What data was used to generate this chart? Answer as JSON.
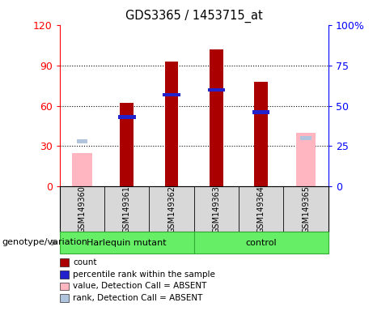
{
  "title": "GDS3365 / 1453715_at",
  "samples": [
    "GSM149360",
    "GSM149361",
    "GSM149362",
    "GSM149363",
    "GSM149364",
    "GSM149365"
  ],
  "count_values": [
    null,
    62,
    93,
    102,
    78,
    null
  ],
  "percentile_values": [
    null,
    43,
    57,
    60,
    46,
    null
  ],
  "absent_value_values": [
    25,
    null,
    null,
    null,
    null,
    40
  ],
  "absent_rank_values": [
    28,
    null,
    null,
    null,
    null,
    30
  ],
  "left_ylim": [
    0,
    120
  ],
  "right_ylim": [
    0,
    100
  ],
  "left_yticks": [
    0,
    30,
    60,
    90,
    120
  ],
  "right_yticks": [
    0,
    25,
    50,
    75,
    100
  ],
  "left_yticklabels": [
    "0",
    "30",
    "60",
    "90",
    "120"
  ],
  "right_yticklabels": [
    "0",
    "25",
    "50",
    "75",
    "100%"
  ],
  "count_color": "#aa0000",
  "percentile_color": "#2222cc",
  "absent_value_color": "#ffb6c1",
  "absent_rank_color": "#b0c4de",
  "bar_width": 0.3,
  "grid_ticks": [
    30,
    60,
    90
  ],
  "legend_items": [
    {
      "label": "count",
      "color": "#aa0000"
    },
    {
      "label": "percentile rank within the sample",
      "color": "#2222cc"
    },
    {
      "label": "value, Detection Call = ABSENT",
      "color": "#ffb6c1"
    },
    {
      "label": "rank, Detection Call = ABSENT",
      "color": "#b0c4de"
    }
  ],
  "genotype_label": "genotype/variation",
  "sample_bg": "#d8d8d8",
  "group_spans": [
    [
      0,
      2,
      "Harlequin mutant"
    ],
    [
      3,
      5,
      "control"
    ]
  ],
  "group_color": "#66ee66"
}
